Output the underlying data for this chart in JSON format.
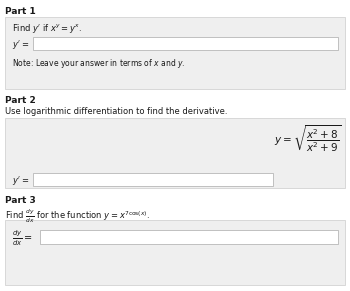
{
  "white": "#ffffff",
  "dark": "#1a1a1a",
  "box_bg": "#efefef",
  "box_border": "#cccccc",
  "input_border": "#aaaaaa",
  "part1_label": "Part 1",
  "part2_label": "Part 2",
  "part3_label": "Part 3",
  "part1_problem": "Find $y'$ if $x^y = y^x$.",
  "part1_note": "Note: Leave your answer in terms of $x$ and $y$.",
  "part2_instruction": "Use logarithmic differentiation to find the derivative.",
  "part3_instruction": "Find $\\frac{dy}{dx}$ for the function $y = x^{7\\cos(x)}$."
}
